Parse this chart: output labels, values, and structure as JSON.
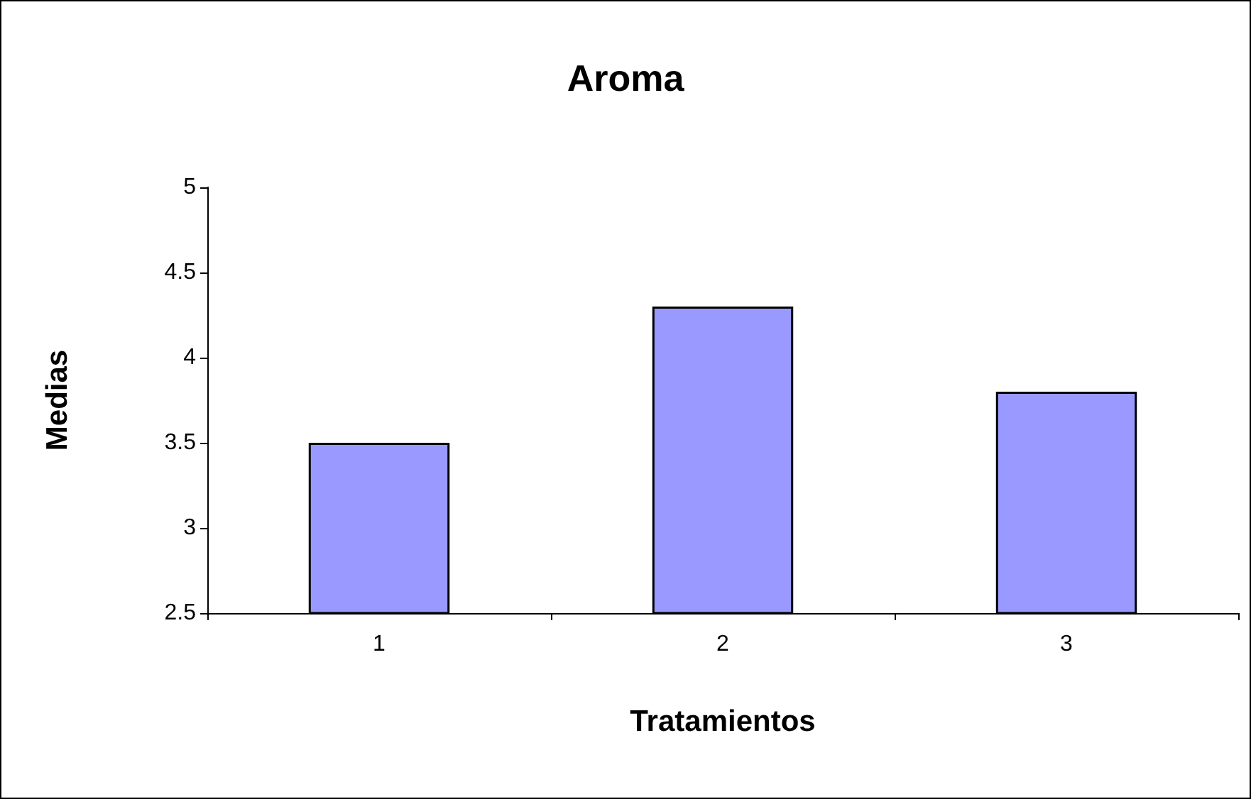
{
  "chart_data": {
    "type": "bar",
    "title": "Aroma",
    "xlabel": "Tratamientos",
    "ylabel": "Medias",
    "categories": [
      "1",
      "2",
      "3"
    ],
    "values": [
      3.5,
      4.3,
      3.8
    ],
    "color": "#9999ff",
    "ylim": [
      2.5,
      5
    ],
    "yticks": [
      2.5,
      3,
      3.5,
      4,
      4.5,
      5
    ],
    "grid": false
  }
}
